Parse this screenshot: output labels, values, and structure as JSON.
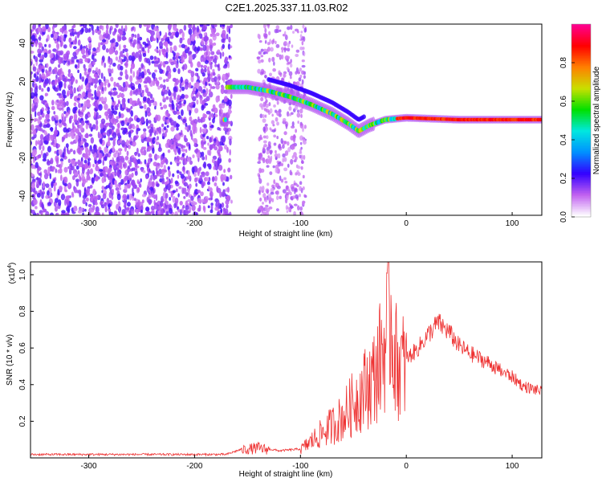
{
  "figure": {
    "title": "C2E1.2025.337.11.03.R02"
  },
  "chart_data": [
    {
      "type": "heatmap",
      "xlabel": "Height of straight line (km)",
      "ylabel": "Frequency (Hz)",
      "xlim": [
        -355,
        128
      ],
      "ylim": [
        -50,
        50
      ],
      "xticks": [
        -300,
        -200,
        -100,
        0,
        100
      ],
      "yticks": [
        -40,
        -20,
        0,
        20,
        40
      ],
      "colorbar": {
        "label": "Normalized spectral amplitude",
        "range": [
          0,
          1
        ],
        "ticks": [
          "0.0",
          "0.2",
          "0.4",
          "0.6",
          "0.8"
        ],
        "colormap": [
          "#ffffff",
          "#c060f0",
          "#3300ff",
          "#0090ff",
          "#00e8e0",
          "#00e000",
          "#c8e000",
          "#ff8000",
          "#ff0000",
          "#ff0090"
        ]
      },
      "ridge": [
        {
          "x": -170,
          "y": 17
        },
        {
          "x": -150,
          "y": 17
        },
        {
          "x": -130,
          "y": 15
        },
        {
          "x": -110,
          "y": 12
        },
        {
          "x": -90,
          "y": 8
        },
        {
          "x": -70,
          "y": 3
        },
        {
          "x": -55,
          "y": -2
        },
        {
          "x": -45,
          "y": -6
        },
        {
          "x": -35,
          "y": -3
        },
        {
          "x": -20,
          "y": 0
        },
        {
          "x": 0,
          "y": 1
        },
        {
          "x": 50,
          "y": 0
        },
        {
          "x": 100,
          "y": 0
        },
        {
          "x": 128,
          "y": 0
        }
      ],
      "grid": false
    },
    {
      "type": "line",
      "xlabel": "Height of straight line (km)",
      "ylabel": "SNR (10 * v/v)",
      "multiplier": "(x10",
      "multiplier_exp": "4",
      "multiplier_close": ")",
      "xlim": [
        -355,
        128
      ],
      "ylim": [
        0,
        1.07
      ],
      "xticks": [
        -300,
        -200,
        -100,
        0,
        100
      ],
      "yticks": [
        0.2,
        0.4,
        0.6,
        0.8,
        1.0
      ],
      "series": [
        {
          "color": "#ee3333",
          "x": [
            -355,
            -300,
            -250,
            -200,
            -170,
            -155,
            -140,
            -120,
            -100,
            -80,
            -60,
            -45,
            -30,
            -20,
            -15,
            -10,
            0,
            10,
            20,
            30,
            40,
            50,
            60,
            70,
            80,
            90,
            100,
            110,
            120,
            128
          ],
          "y": [
            0.02,
            0.02,
            0.02,
            0.02,
            0.02,
            0.05,
            0.06,
            0.04,
            0.05,
            0.15,
            0.25,
            0.38,
            0.5,
            0.7,
            0.9,
            0.6,
            0.55,
            0.6,
            0.68,
            0.75,
            0.7,
            0.62,
            0.58,
            0.55,
            0.52,
            0.48,
            0.45,
            0.4,
            0.38,
            0.37
          ]
        }
      ],
      "grid": false
    }
  ]
}
